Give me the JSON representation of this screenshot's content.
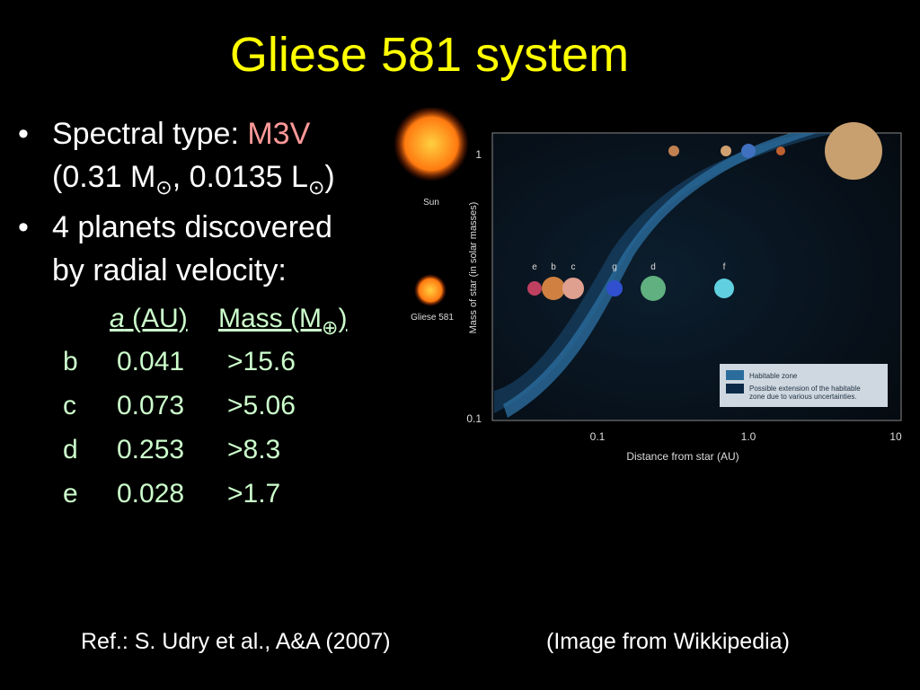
{
  "slide": {
    "title": "Gliese 581 system",
    "bullets": [
      {
        "text": "Spectral type: ",
        "highlight": "M3V",
        "line2": [
          "(0.31 M",
          "⊙",
          ", 0.0135 L",
          "⊙",
          ")"
        ]
      },
      {
        "lines": [
          "4 planets discovered",
          "by radial velocity:"
        ]
      }
    ],
    "table": {
      "header": [
        "a",
        " (AU)",
        "Mass (M",
        "⊕",
        ")"
      ],
      "rows": [
        [
          "b",
          "0.041",
          ">15.6"
        ],
        [
          "c",
          "0.073",
          ">5.06"
        ],
        [
          "d",
          "0.253",
          ">8.3"
        ],
        [
          "e",
          "0.028",
          ">1.7"
        ]
      ]
    },
    "reference": "Ref.: S. Udry et al., A&A (2007)",
    "credit": "(Image from Wikkipedia)",
    "figure": {
      "sun_label": "Sun",
      "star_label": "Gliese 581",
      "y_label": "Mass of star (in solar masses)",
      "x_label": "Distance from star (AU)",
      "xtick_labels": [
        "0.1",
        "1.0",
        "10"
      ],
      "ytick_labels": [
        "1",
        "0.1"
      ],
      "planet_labels": [
        "e",
        "b",
        "c",
        "g",
        "d",
        "f"
      ],
      "legend": [
        "Habitable zone",
        "Possible extension of the habitable",
        "zone due to various uncertainties."
      ]
    }
  }
}
